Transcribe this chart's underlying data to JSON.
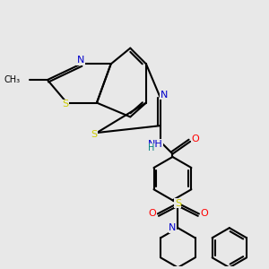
{
  "bg_color": "#e8e8e8",
  "bond_color": "#000000",
  "lw": 1.5,
  "atom_colors": {
    "N": "#0000cc",
    "S": "#cccc00",
    "O": "#ff0000",
    "C": "#000000"
  },
  "figsize": [
    3.0,
    3.0
  ],
  "dpi": 100,
  "xlim": [
    -4.5,
    5.5
  ],
  "ylim": [
    -5.5,
    4.5
  ]
}
